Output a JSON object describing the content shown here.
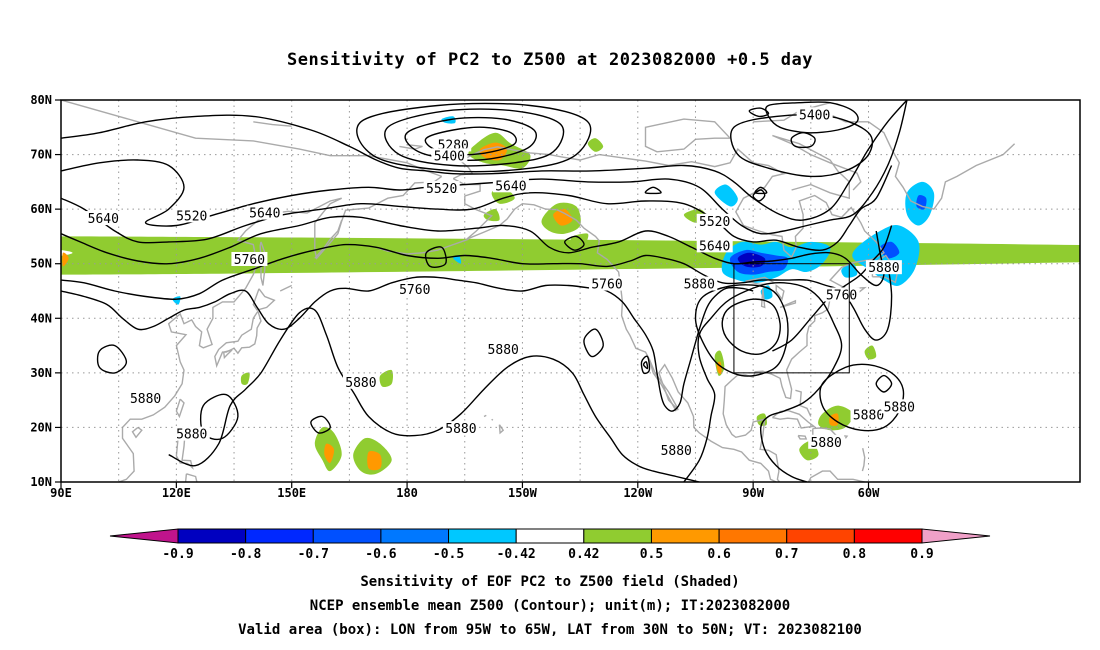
{
  "title": "Sensitivity of PC2 to Z500 at 2023082000 +0.5 day",
  "axes": {
    "lat_ticks": [
      "80N",
      "70N",
      "60N",
      "50N",
      "40N",
      "30N",
      "20N",
      "10N"
    ],
    "lon_ticks": [
      "90E",
      "120E",
      "150E",
      "180",
      "150W",
      "120W",
      "90W",
      "60W"
    ]
  },
  "contour_labels": [
    {
      "text": "5400",
      "lon": -74,
      "lat": 77
    },
    {
      "text": "5280",
      "lon": -168,
      "lat": 71.5
    },
    {
      "text": "5400",
      "lon": -169,
      "lat": 69.5
    },
    {
      "text": "5520",
      "lon": -171,
      "lat": 63.5
    },
    {
      "text": "5640",
      "lon": -153,
      "lat": 64
    },
    {
      "text": "5520",
      "lon": -100,
      "lat": 57.5
    },
    {
      "text": "5640",
      "lon": -100,
      "lat": 53
    },
    {
      "text": "5640",
      "lon": 101,
      "lat": 58
    },
    {
      "text": "5520",
      "lon": 124,
      "lat": 58.5
    },
    {
      "text": "5640",
      "lon": 143,
      "lat": 59
    },
    {
      "text": "5760",
      "lon": 139,
      "lat": 50.5
    },
    {
      "text": "5760",
      "lon": -178,
      "lat": 45
    },
    {
      "text": "5760",
      "lon": -128,
      "lat": 46
    },
    {
      "text": "5880",
      "lon": -104,
      "lat": 46
    },
    {
      "text": "5760",
      "lon": -67,
      "lat": 44
    },
    {
      "text": "5880",
      "lon": -56,
      "lat": 49
    },
    {
      "text": "5880",
      "lon": -155,
      "lat": 34
    },
    {
      "text": "5880",
      "lon": 168,
      "lat": 28
    },
    {
      "text": "5880",
      "lon": 112,
      "lat": 25
    },
    {
      "text": "5880",
      "lon": 124,
      "lat": 18.5
    },
    {
      "text": "5880",
      "lon": -166,
      "lat": 19.5
    },
    {
      "text": "5880",
      "lon": -110,
      "lat": 15.5
    },
    {
      "text": "5880",
      "lon": -71,
      "lat": 17
    },
    {
      "text": "5880",
      "lon": -60,
      "lat": 22
    },
    {
      "text": "5880",
      "lon": -52,
      "lat": 23.5
    }
  ],
  "colorbar": {
    "labels": [
      "-0.9",
      "-0.8",
      "-0.7",
      "-0.6",
      "-0.5",
      "-0.42",
      "0.42",
      "0.5",
      "0.6",
      "0.7",
      "0.8",
      "0.9"
    ],
    "colors": [
      "#0000c0",
      "#0028ff",
      "#0050ff",
      "#0078ff",
      "#00c8ff",
      "#ffffff",
      "#90cc30",
      "#ff9900",
      "#ff7700",
      "#ff4400",
      "#ff0000"
    ],
    "low_end_color": "#c0148c",
    "high_end_color": "#f0a0c8"
  },
  "shading_colors": {
    "blue_dark": "#0000c0",
    "blue": "#0050ff",
    "cyan": "#00c8ff",
    "green": "#90cc30",
    "orange": "#ff9900",
    "red_orange": "#ff4400"
  },
  "valid_box": {
    "lon_min": -95,
    "lon_max": -65,
    "lat_min": 30,
    "lat_max": 50
  },
  "captions": [
    "Sensitivity of EOF PC2 to Z500 field (Shaded)",
    "NCEP ensemble mean Z500 (Contour); unit(m); IT:2023082000",
    "Valid area (box): LON from 95W to 65W, LAT from 30N to 50N; VT: 2023082100"
  ]
}
